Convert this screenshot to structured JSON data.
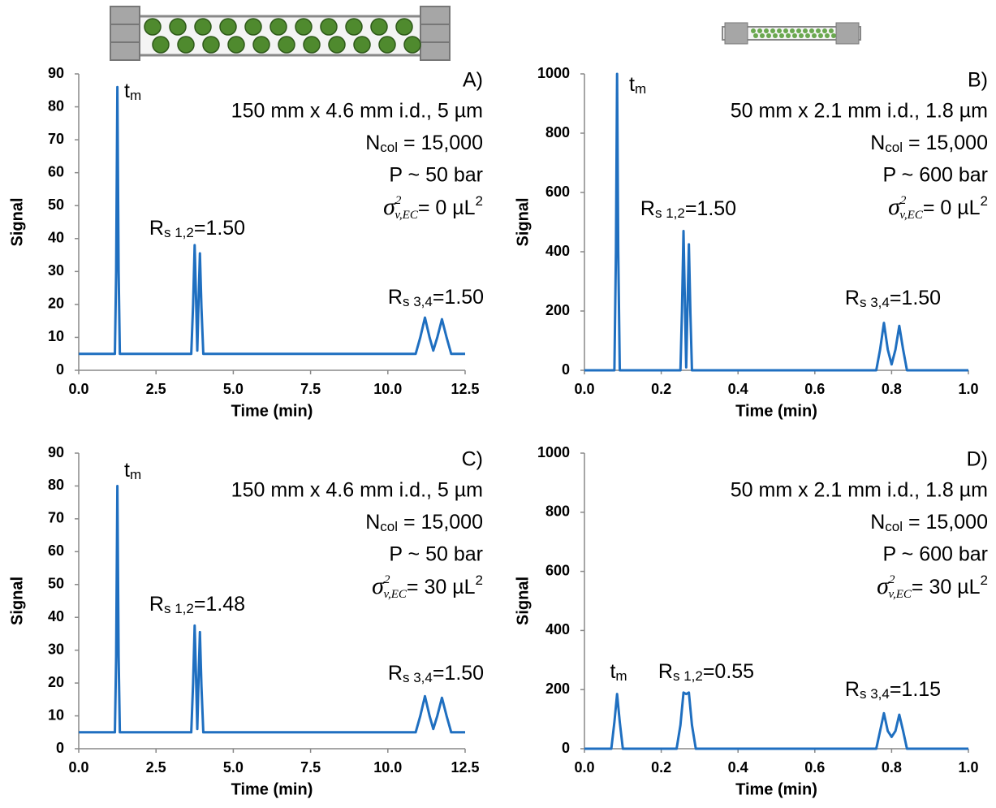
{
  "chart_data": [
    {
      "type": "line",
      "panel": "A)",
      "column": "150 mm x 4.6 mm i.d., 5 µm",
      "ncol": {
        "main": "N",
        "sub": "col",
        "tail": " = 15,000"
      },
      "pressure": "P ~ 50 bar",
      "sigma": {
        "symbol": "σ",
        "sup": "2",
        "sub": "v,EC",
        "tail": "= 0 µL",
        "tail_sup": "2"
      },
      "tm": {
        "main": "t",
        "sub": "m"
      },
      "rs12": {
        "main": "R",
        "sub": "s 1,2",
        "tail": "=1.50"
      },
      "rs34": {
        "main": "R",
        "sub": "s 3,4",
        "tail": "=1.50"
      },
      "xlabel": "Time (min)",
      "ylabel": "Signal",
      "color": "#1f6fc0",
      "xlim": [
        0,
        12.5
      ],
      "xticks": [
        {
          "value": 0,
          "label": "0.0"
        },
        2.5,
        {
          "value": 5,
          "label": "5.0"
        },
        7.5,
        {
          "value": 10,
          "label": "10.0"
        },
        12.5
      ],
      "ylim": [
        0,
        90
      ],
      "yticks": [
        0,
        10,
        20,
        30,
        40,
        50,
        60,
        70,
        80,
        90
      ],
      "x": [
        0,
        1.17,
        1.21,
        1.25,
        1.29,
        1.33,
        3.64,
        3.7,
        3.75,
        3.8,
        3.835,
        3.87,
        3.92,
        3.97,
        4.03,
        10.9,
        11.05,
        11.2,
        11.35,
        11.47,
        11.6,
        11.75,
        11.9,
        12.05,
        12.5
      ],
      "values": [
        5,
        5,
        30,
        86,
        30,
        5,
        5,
        20,
        38,
        20,
        6,
        19,
        35.5,
        19,
        5,
        5,
        10,
        16,
        10,
        6,
        10,
        15.5,
        10,
        5,
        5
      ]
    },
    {
      "type": "line",
      "panel": "B)",
      "column": "50 mm x 2.1 mm i.d., 1.8 µm",
      "ncol": {
        "main": "N",
        "sub": "col",
        "tail": " = 15,000"
      },
      "pressure": "P ~ 600 bar",
      "sigma": {
        "symbol": "σ",
        "sup": "2",
        "sub": "v,EC",
        "tail": "= 0 µL",
        "tail_sup": "2"
      },
      "tm": {
        "main": "t",
        "sub": "m"
      },
      "rs12": {
        "main": "R",
        "sub": "s 1,2",
        "tail": "=1.50"
      },
      "rs34": {
        "main": "R",
        "sub": "s 3,4",
        "tail": "=1.50"
      },
      "xlabel": "Time (min)",
      "ylabel": "Signal",
      "color": "#1f6fc0",
      "xlim": [
        0,
        1
      ],
      "xticks": [
        {
          "value": 0,
          "label": "0.0"
        },
        0.2,
        0.4,
        0.6,
        0.8,
        {
          "value": 1,
          "label": "1.0"
        }
      ],
      "ylim": [
        0,
        1000
      ],
      "yticks": [
        0,
        200,
        400,
        600,
        800,
        1000
      ],
      "x": [
        0,
        0.078,
        0.082,
        0.085,
        0.088,
        0.092,
        0.25,
        0.254,
        0.258,
        0.262,
        0.265,
        0.268,
        0.272,
        0.276,
        0.28,
        0.76,
        0.77,
        0.78,
        0.79,
        0.8,
        0.81,
        0.82,
        0.83,
        0.84,
        1
      ],
      "values": [
        0,
        0,
        400,
        1000,
        400,
        0,
        0,
        200,
        470,
        200,
        10,
        190,
        425,
        190,
        0,
        0,
        70,
        160,
        70,
        20,
        70,
        150,
        70,
        0,
        0
      ]
    },
    {
      "type": "line",
      "panel": "C)",
      "column": "150 mm x 4.6 mm i.d., 5 µm",
      "ncol": {
        "main": "N",
        "sub": "col",
        "tail": " = 15,000"
      },
      "pressure": "P ~ 50 bar",
      "sigma": {
        "symbol": "σ",
        "sup": "2",
        "sub": "v,EC",
        "tail": "= 30 µL",
        "tail_sup": "2"
      },
      "tm": {
        "main": "t",
        "sub": "m"
      },
      "rs12": {
        "main": "R",
        "sub": "s 1,2",
        "tail": "=1.48"
      },
      "rs34": {
        "main": "R",
        "sub": "s 3,4",
        "tail": "=1.50"
      },
      "xlabel": "Time (min)",
      "ylabel": "Signal",
      "color": "#1f6fc0",
      "xlim": [
        0,
        12.5
      ],
      "xticks": [
        {
          "value": 0,
          "label": "0.0"
        },
        2.5,
        {
          "value": 5,
          "label": "5.0"
        },
        7.5,
        {
          "value": 10,
          "label": "10.0"
        },
        12.5
      ],
      "ylim": [
        0,
        90
      ],
      "yticks": [
        0,
        10,
        20,
        30,
        40,
        50,
        60,
        70,
        80,
        90
      ],
      "x": [
        0,
        1.17,
        1.21,
        1.25,
        1.29,
        1.33,
        3.64,
        3.7,
        3.75,
        3.8,
        3.835,
        3.87,
        3.92,
        3.97,
        4.03,
        10.9,
        11.05,
        11.2,
        11.35,
        11.47,
        11.6,
        11.75,
        11.9,
        12.05,
        12.5
      ],
      "values": [
        5,
        5,
        28,
        80,
        28,
        5,
        5,
        20,
        37.5,
        20,
        6,
        19,
        35.5,
        19,
        5,
        5,
        10,
        16,
        10,
        6,
        10,
        15.5,
        10,
        5,
        5
      ]
    },
    {
      "type": "line",
      "panel": "D)",
      "column": "50 mm x 2.1 mm i.d., 1.8 µm",
      "ncol": {
        "main": "N",
        "sub": "col",
        "tail": " = 15,000"
      },
      "pressure": "P ~ 600 bar",
      "sigma": {
        "symbol": "σ",
        "sup": "2",
        "sub": "v,EC",
        "tail": "= 30 µL",
        "tail_sup": "2"
      },
      "tm": {
        "main": "t",
        "sub": "m"
      },
      "rs12": {
        "main": "R",
        "sub": "s 1,2",
        "tail": "=0.55"
      },
      "rs34": {
        "main": "R",
        "sub": "s 3,4",
        "tail": "=1.15"
      },
      "xlabel": "Time (min)",
      "ylabel": "Signal",
      "color": "#1f6fc0",
      "xlim": [
        0,
        1
      ],
      "xticks": [
        {
          "value": 0,
          "label": "0.0"
        },
        0.2,
        0.4,
        0.6,
        0.8,
        {
          "value": 1,
          "label": "1.0"
        }
      ],
      "ylim": [
        0,
        1000
      ],
      "yticks": [
        0,
        200,
        400,
        600,
        800,
        1000
      ],
      "x": [
        0,
        0.07,
        0.078,
        0.085,
        0.092,
        0.1,
        0.24,
        0.25,
        0.258,
        0.265,
        0.272,
        0.28,
        0.29,
        0.76,
        0.77,
        0.78,
        0.79,
        0.8,
        0.81,
        0.82,
        0.83,
        0.84,
        1
      ],
      "values": [
        0,
        0,
        90,
        185,
        90,
        0,
        0,
        80,
        190,
        185,
        190,
        80,
        0,
        0,
        60,
        120,
        60,
        40,
        60,
        115,
        60,
        0,
        0
      ]
    }
  ]
}
